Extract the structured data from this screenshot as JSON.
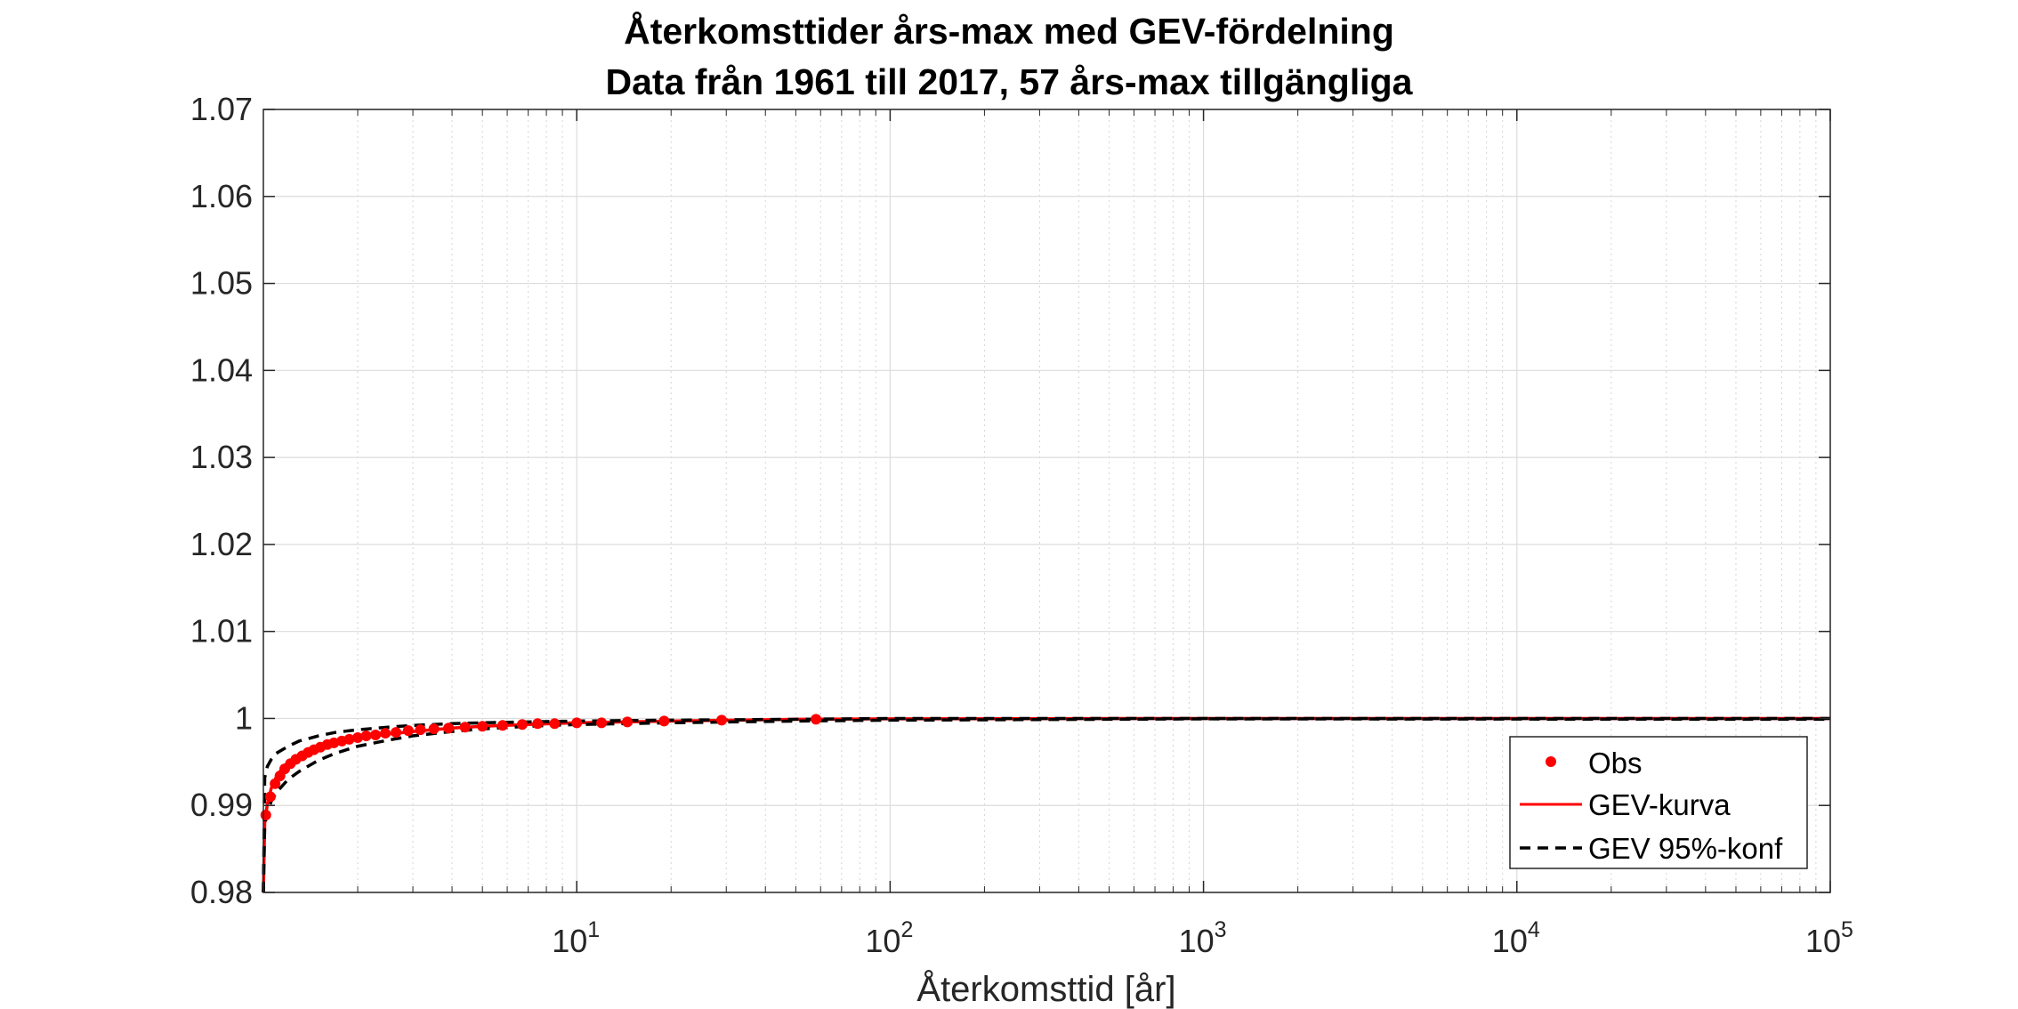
{
  "chart_data": {
    "type": "line",
    "title": [
      "Återkomsttider års-max med GEV-fördelning",
      "Data från 1961 till 2017, 57 års-max tillgängliga"
    ],
    "xlabel": "Återkomsttid [år]",
    "ylabel": "",
    "xscale": "log",
    "xlim": [
      1,
      100000
    ],
    "ylim": [
      0.98,
      1.07
    ],
    "grid": true,
    "minor_grid": true,
    "legend_position": "bottom-right",
    "x_ticks": [
      10,
      100,
      1000,
      10000,
      100000
    ],
    "x_tick_labels": [
      {
        "base": "10",
        "exp": "1"
      },
      {
        "base": "10",
        "exp": "2"
      },
      {
        "base": "10",
        "exp": "3"
      },
      {
        "base": "10",
        "exp": "4"
      },
      {
        "base": "10",
        "exp": "5"
      }
    ],
    "y_ticks": [
      0.98,
      0.99,
      1.0,
      1.01,
      1.02,
      1.03,
      1.04,
      1.05,
      1.06,
      1.07
    ],
    "y_tick_labels": [
      "0.98",
      "0.99",
      "1",
      "1.01",
      "1.02",
      "1.03",
      "1.04",
      "1.05",
      "1.06",
      "1.07"
    ],
    "series": [
      {
        "name": "Obs",
        "kind": "markers",
        "color": "#ff0000",
        "x": [
          1.018,
          1.053,
          1.09,
          1.13,
          1.17,
          1.22,
          1.27,
          1.33,
          1.39,
          1.45,
          1.52,
          1.6,
          1.68,
          1.78,
          1.88,
          2.0,
          2.13,
          2.28,
          2.45,
          2.65,
          2.9,
          3.17,
          3.5,
          3.9,
          4.4,
          5.0,
          5.8,
          6.7,
          7.5,
          8.5,
          10.0,
          12.0,
          14.5,
          19.0,
          29.0,
          58.0
        ],
        "y": [
          0.9889,
          0.991,
          0.9925,
          0.9934,
          0.9942,
          0.9948,
          0.9953,
          0.9957,
          0.9961,
          0.9964,
          0.9967,
          0.997,
          0.9972,
          0.9974,
          0.9976,
          0.9978,
          0.998,
          0.9981,
          0.9983,
          0.9984,
          0.9986,
          0.9987,
          0.9988,
          0.9989,
          0.999,
          0.9991,
          0.9992,
          0.9993,
          0.9994,
          0.9994,
          0.9995,
          0.9995,
          0.9996,
          0.9997,
          0.9998,
          0.9999
        ]
      },
      {
        "name": "GEV-kurva",
        "kind": "line",
        "color": "#ff0000",
        "x": [
          1.0,
          1.01,
          1.03,
          1.06,
          1.1,
          1.15,
          1.2,
          1.3,
          1.4,
          1.5,
          1.7,
          2.0,
          2.5,
          3.0,
          4.0,
          5.0,
          7.0,
          10.0,
          20.0,
          50.0,
          100.0,
          1000.0,
          100000.0
        ],
        "y": [
          0.98,
          0.988,
          0.9902,
          0.992,
          0.9933,
          0.9943,
          0.995,
          0.9957,
          0.9962,
          0.9966,
          0.9971,
          0.9977,
          0.9982,
          0.9985,
          0.9989,
          0.9991,
          0.9993,
          0.9995,
          0.9997,
          0.9999,
          0.99995,
          1.0,
          1.0
        ]
      },
      {
        "name": "GEV 95%-konf",
        "kind": "dashed",
        "color": "#000000",
        "x": [
          1.0,
          1.01,
          1.03,
          1.06,
          1.1,
          1.2,
          1.3,
          1.5,
          1.7,
          2.0,
          2.5,
          3.0,
          4.0,
          5.0,
          7.0,
          10.0,
          20.0,
          50.0,
          100.0,
          1000.0,
          100000.0
        ],
        "y": [
          0.98,
          0.9932,
          0.9945,
          0.9953,
          0.996,
          0.9968,
          0.9974,
          0.998,
          0.9984,
          0.9987,
          0.999,
          0.9992,
          0.9994,
          0.9995,
          0.9996,
          0.9997,
          0.9998,
          0.9999,
          1.0,
          1.0,
          1.0
        ]
      },
      {
        "name": "",
        "kind": "dashed",
        "color": "#000000",
        "x": [
          1.0,
          1.01,
          1.03,
          1.06,
          1.1,
          1.2,
          1.3,
          1.5,
          1.7,
          2.0,
          2.5,
          3.0,
          4.0,
          5.0,
          7.0,
          10.0,
          20.0,
          50.0,
          100.0,
          1000.0,
          100000.0
        ],
        "y": [
          0.98,
          0.9878,
          0.9892,
          0.9905,
          0.9915,
          0.993,
          0.9939,
          0.9952,
          0.996,
          0.9968,
          0.9975,
          0.998,
          0.9985,
          0.9988,
          0.9991,
          0.9993,
          0.9995,
          0.9997,
          0.9998,
          0.99995,
          0.9999
        ]
      }
    ]
  }
}
